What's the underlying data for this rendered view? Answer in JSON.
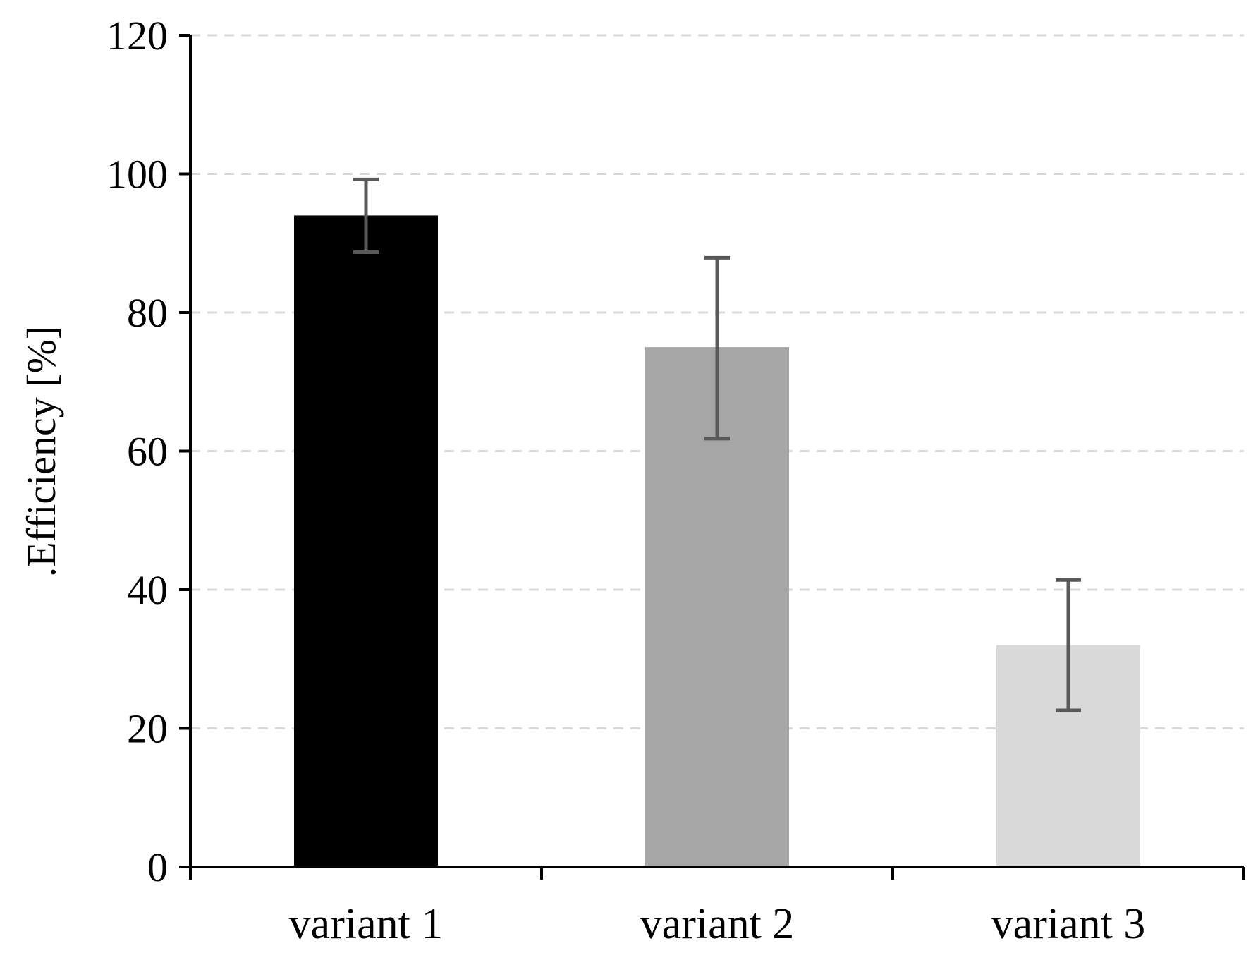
{
  "chart_data": {
    "type": "bar",
    "title": "",
    "xlabel": "",
    "ylabel": ".Efficiency [%]",
    "ylim": [
      0,
      120
    ],
    "yticks": [
      0,
      20,
      40,
      60,
      80,
      100,
      120
    ],
    "grid": "horizontal dashed",
    "legend": "none",
    "categories": [
      "variant 1",
      "variant 2",
      "variant 3"
    ],
    "values": [
      94,
      75,
      32
    ],
    "error_low": [
      88.7,
      61.8,
      22.6
    ],
    "error_high": [
      99.2,
      87.9,
      41.4
    ],
    "bar_colors": [
      "#000000",
      "#a6a6a6",
      "#d9d9d9"
    ],
    "error_color": "#595959",
    "grid_color": "#d9d9d9",
    "axis_color": "#000000"
  }
}
